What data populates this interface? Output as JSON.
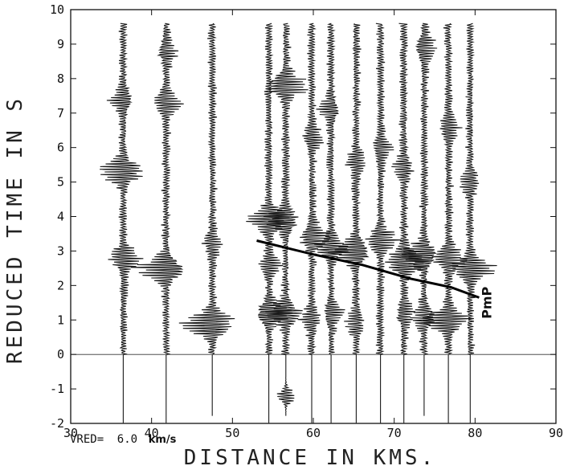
{
  "chart_data": {
    "type": "seismic-record-section",
    "xlabel": "DISTANCE IN KMS.",
    "ylabel": "REDUCED TIME IN S",
    "xlim": [
      30,
      90
    ],
    "ylim": [
      -2,
      10
    ],
    "xticks": [
      30,
      40,
      50,
      60,
      70,
      80,
      90
    ],
    "yticks": [
      -2,
      -1,
      0,
      1,
      2,
      3,
      4,
      5,
      6,
      7,
      8,
      9,
      10
    ],
    "zero_line": 0,
    "reduction_velocity": {
      "prefix": "VRED=",
      "value": "6.0",
      "unit": "km/s"
    },
    "traces": [
      {
        "distance": 36.5,
        "t_start": 9.6,
        "t_end": -2.0,
        "packets": [
          {
            "t": 5.3,
            "amp": 3.5
          },
          {
            "t": 2.8,
            "amp": 2.2
          },
          {
            "t": 7.4,
            "amp": 1.6
          }
        ]
      },
      {
        "distance": 41.8,
        "t_start": 9.6,
        "t_end": -2.0,
        "packets": [
          {
            "t": 2.5,
            "amp": 4.0
          },
          {
            "t": 7.3,
            "amp": 2.0
          },
          {
            "t": 8.8,
            "amp": 1.2
          }
        ]
      },
      {
        "distance": 47.5,
        "t_start": 9.6,
        "t_end": -1.8,
        "packets": [
          {
            "t": 0.9,
            "amp": 4.2
          },
          {
            "t": 3.2,
            "amp": 1.2
          }
        ]
      },
      {
        "distance": 54.5,
        "t_start": 9.6,
        "t_end": -2.0,
        "packets": [
          {
            "t": 3.9,
            "amp": 3.2
          },
          {
            "t": 1.2,
            "amp": 2.6
          },
          {
            "t": 2.6,
            "amp": 1.3
          }
        ]
      },
      {
        "distance": 56.6,
        "t_start": 9.6,
        "t_end": -1.8,
        "packets": [
          {
            "t": 7.8,
            "amp": 3.2
          },
          {
            "t": 3.9,
            "amp": 2.5
          },
          {
            "t": 1.2,
            "amp": 2.4
          },
          {
            "t": -1.2,
            "amp": 1.6
          }
        ]
      },
      {
        "distance": 59.8,
        "t_start": 9.6,
        "t_end": -2.0,
        "packets": [
          {
            "t": 3.4,
            "amp": 2.2
          },
          {
            "t": 6.3,
            "amp": 1.4
          },
          {
            "t": 1.0,
            "amp": 1.2
          }
        ]
      },
      {
        "distance": 62.2,
        "t_start": 9.6,
        "t_end": -2.0,
        "packets": [
          {
            "t": 3.1,
            "amp": 2.2
          },
          {
            "t": 7.1,
            "amp": 1.3
          },
          {
            "t": 1.2,
            "amp": 1.2
          }
        ]
      },
      {
        "distance": 65.3,
        "t_start": 9.6,
        "t_end": -2.0,
        "packets": [
          {
            "t": 3.0,
            "amp": 3.2
          },
          {
            "t": 5.6,
            "amp": 1.3
          },
          {
            "t": 0.9,
            "amp": 1.2
          }
        ]
      },
      {
        "distance": 68.3,
        "t_start": 9.6,
        "t_end": -2.0,
        "packets": [
          {
            "t": 3.3,
            "amp": 2.4
          },
          {
            "t": 6.0,
            "amp": 1.3
          }
        ]
      },
      {
        "distance": 71.2,
        "t_start": 9.6,
        "t_end": -2.0,
        "packets": [
          {
            "t": 2.7,
            "amp": 3.0
          },
          {
            "t": 5.4,
            "amp": 1.3
          },
          {
            "t": 1.2,
            "amp": 1.2
          }
        ]
      },
      {
        "distance": 73.7,
        "t_start": 9.6,
        "t_end": -1.8,
        "packets": [
          {
            "t": 2.9,
            "amp": 2.6
          },
          {
            "t": 8.9,
            "amp": 1.6
          },
          {
            "t": 1.1,
            "amp": 1.4
          }
        ]
      },
      {
        "distance": 76.7,
        "t_start": 9.6,
        "t_end": -2.0,
        "packets": [
          {
            "t": 1.0,
            "amp": 3.4
          },
          {
            "t": 2.8,
            "amp": 2.4
          },
          {
            "t": 6.6,
            "amp": 1.3
          }
        ]
      },
      {
        "distance": 79.4,
        "t_start": 9.6,
        "t_end": -2.0,
        "packets": [
          {
            "t": 2.5,
            "amp": 3.2
          },
          {
            "t": 5.0,
            "amp": 1.2
          }
        ]
      }
    ],
    "annotations": [
      {
        "label": "PmP",
        "x": 82.0,
        "y": 1.5,
        "rotation": -90,
        "curve": [
          [
            53.0,
            3.3
          ],
          [
            60.0,
            2.9
          ],
          [
            66.0,
            2.6
          ],
          [
            72.0,
            2.2
          ],
          [
            77.0,
            1.95
          ],
          [
            80.5,
            1.65
          ]
        ]
      }
    ]
  }
}
